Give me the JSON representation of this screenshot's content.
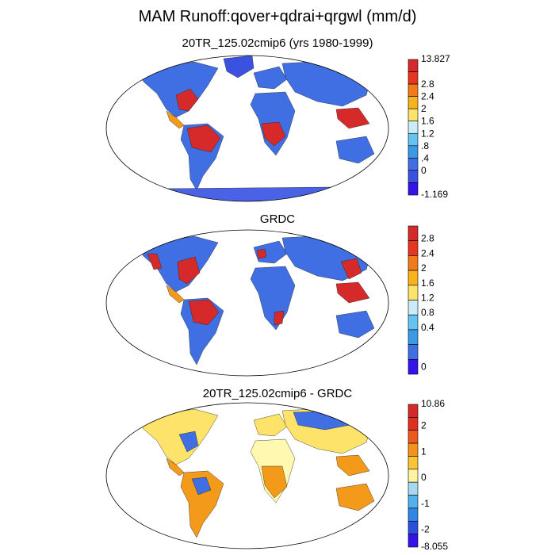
{
  "figure": {
    "title": "MAM Runoff:qover+qdrai+qrgwl (mm/d)"
  },
  "panels": [
    {
      "title": "20TR_125.02cmip6 (yrs 1980-1999)",
      "colorbar": {
        "labels": [
          "13.827",
          "2.8",
          "2.4",
          "2",
          "1.6",
          "1.2",
          ".8",
          ".4",
          "0",
          "-1.169"
        ],
        "colors": [
          "#d42a2a",
          "#e8351f",
          "#f17a1b",
          "#f8b21a",
          "#fde36a",
          "#c9ecf8",
          "#65c3ef",
          "#3a9ae6",
          "#3f6fe3",
          "#3b52e0",
          "#3512ea"
        ]
      }
    },
    {
      "title": "GRDC",
      "colorbar": {
        "labels": [
          "2.8",
          "2.4",
          "2",
          "1.6",
          "1.2",
          "0.8",
          "0.4",
          "0"
        ],
        "colors": [
          "#d42a2a",
          "#e8351f",
          "#f17a1b",
          "#f8b21a",
          "#fde36a",
          "#c9ecf8",
          "#65c3ef",
          "#3a9ae6",
          "#3f6fe3",
          "#3512ea"
        ]
      }
    },
    {
      "title": "20TR_125.02cmip6 - GRDC",
      "colorbar": {
        "labels": [
          "10.86",
          "2",
          "1",
          "0",
          "-1",
          "-2",
          "-8.055"
        ],
        "colors": [
          "#d42a2a",
          "#e03020",
          "#ee5a1c",
          "#f6921a",
          "#fbc432",
          "#fdf2a0",
          "#a8d8ee",
          "#53b1ec",
          "#2f86e6",
          "#2a4fdc",
          "#3512ea"
        ]
      }
    }
  ],
  "map_colors": {
    "wet": "#d62a2a",
    "moist": "#f39a1b",
    "mid": "#fde36a",
    "dry": "#3f6fe3",
    "arid": "#3b52e0",
    "pale": "#fff8b0",
    "ice": "#4a63e6"
  }
}
